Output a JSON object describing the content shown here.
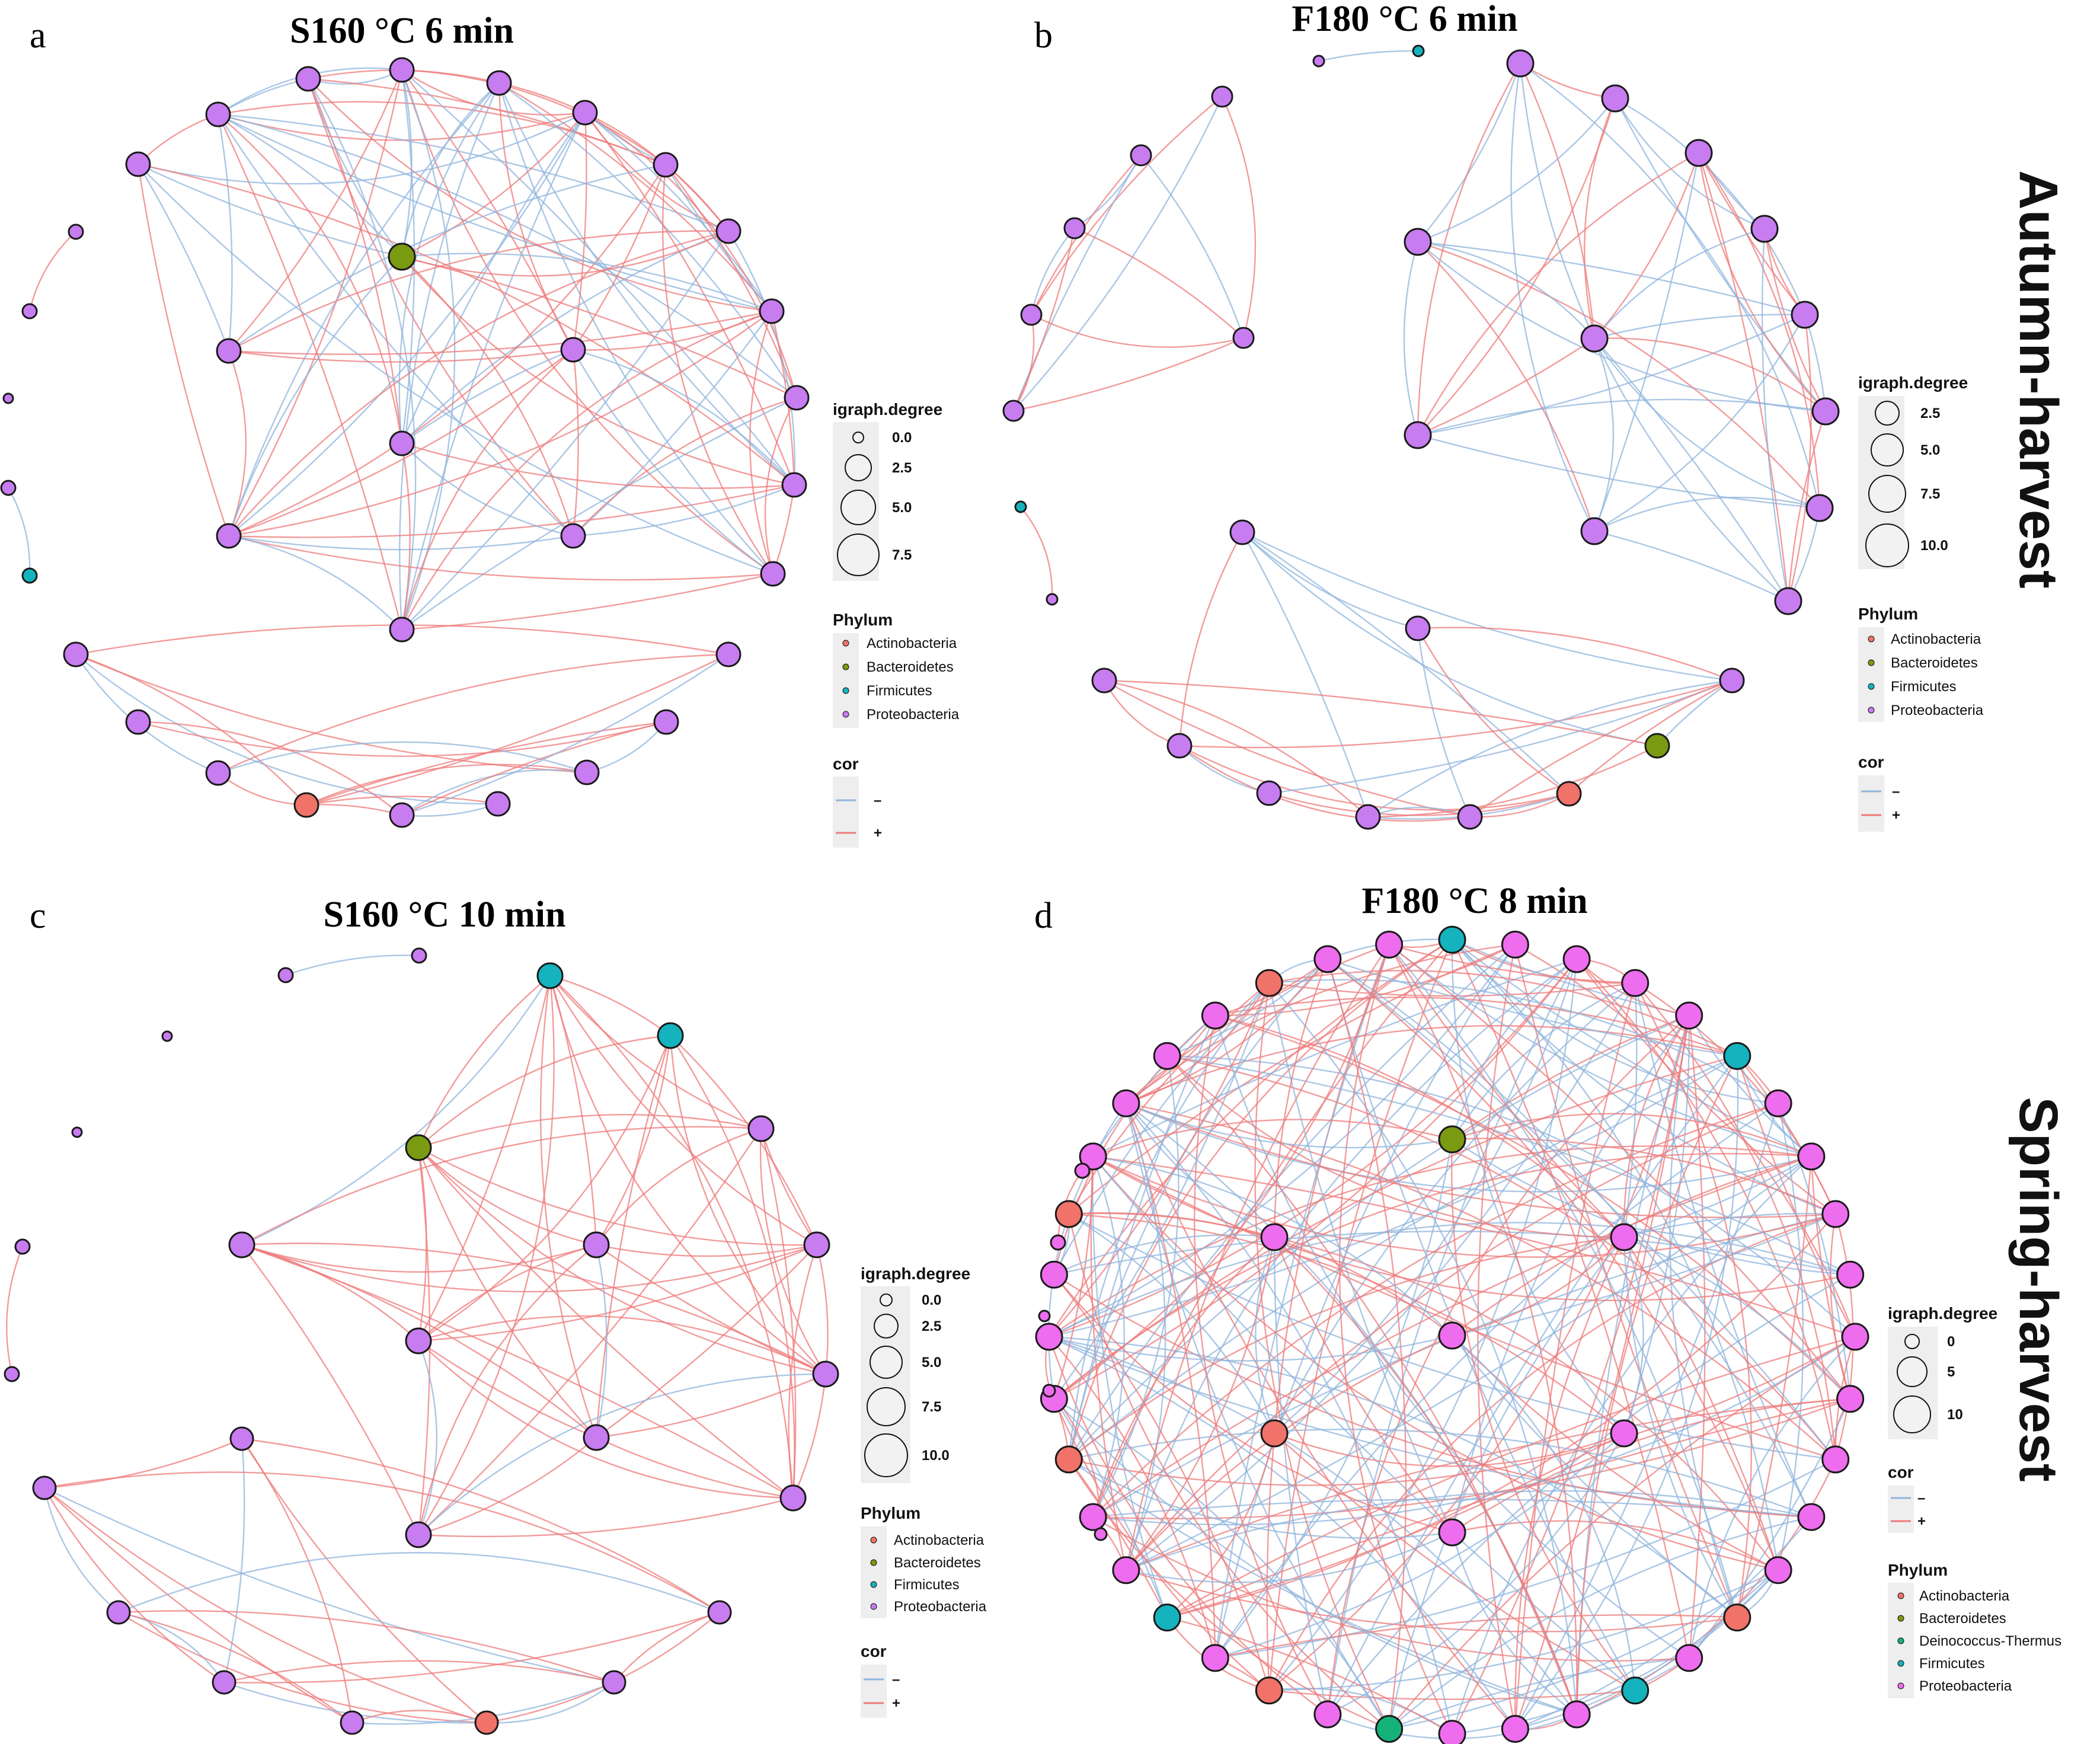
{
  "colors": {
    "negative_edge": "#8fb4dc",
    "positive_edge": "#ee7a7a",
    "Actinobacteria": "#f07269",
    "Bacteroidetes": "#7a9a12",
    "Deinococcus-Thermus": "#14b27a",
    "Firmicutes": "#14b3bd",
    "Proteobacteria": "#c77cf0",
    "Proteobacteria_d": "#ee6cee",
    "legend_key_bg": "#eeeeee",
    "node_stroke": "#1a1a1a"
  },
  "row_labels": {
    "autumn": "Autumn-harvest",
    "spring": "Spring-harvest"
  },
  "panels": [
    {
      "letter": "a",
      "title": "S160 °C 6 min",
      "legend": {
        "degree_title": "igraph.degree",
        "degree_values": [
          "0.0",
          "2.5",
          "5.0",
          "7.5"
        ],
        "phylum_title": "Phylum",
        "phyla": [
          "Actinobacteria",
          "Bacteroidetes",
          "Firmicutes",
          "Proteobacteria"
        ],
        "cor_title": "cor",
        "cor_values": [
          "–",
          "+"
        ]
      }
    },
    {
      "letter": "b",
      "title": "F180 °C 6 min",
      "legend": {
        "degree_title": "igraph.degree",
        "degree_values": [
          "2.5",
          "5.0",
          "7.5",
          "10.0"
        ],
        "phylum_title": "Phylum",
        "phyla": [
          "Actinobacteria",
          "Bacteroidetes",
          "Firmicutes",
          "Proteobacteria"
        ],
        "cor_title": "cor",
        "cor_values": [
          "–",
          "+"
        ]
      }
    },
    {
      "letter": "c",
      "title": "S160 °C 10 min",
      "legend": {
        "degree_title": "igraph.degree",
        "degree_values": [
          "0.0",
          "2.5",
          "5.0",
          "7.5",
          "10.0"
        ],
        "phylum_title": "Phylum",
        "phyla": [
          "Actinobacteria",
          "Bacteroidetes",
          "Firmicutes",
          "Proteobacteria"
        ],
        "cor_title": "cor",
        "cor_values": [
          "–",
          "+"
        ]
      }
    },
    {
      "letter": "d",
      "title": "F180 °C 8 min",
      "legend": {
        "degree_title": "igraph.degree",
        "degree_values": [
          "0",
          "5",
          "10"
        ],
        "cor_title": "cor",
        "cor_values": [
          "–",
          "+"
        ],
        "phylum_title": "Phylum",
        "phyla": [
          "Actinobacteria",
          "Bacteroidetes",
          "Deinococcus-Thermus",
          "Firmicutes",
          "Proteobacteria"
        ]
      }
    }
  ]
}
